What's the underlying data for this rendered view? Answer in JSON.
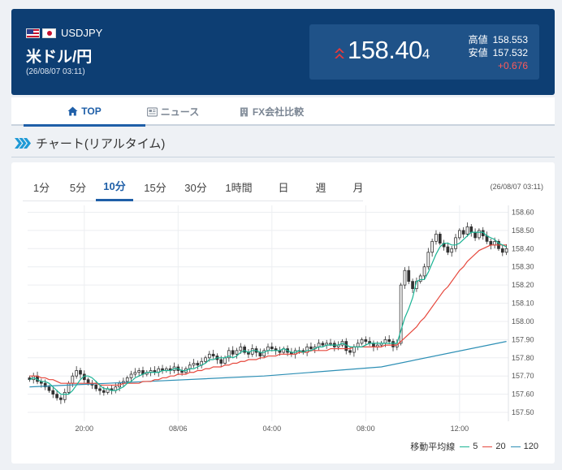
{
  "header": {
    "pair_code": "USDJPY",
    "pair_name": "米ドル/円",
    "timestamp": "(26/08/07 03:11)",
    "price_main": "158.40",
    "price_sub": "4",
    "high_label": "高値",
    "high_value": "158.553",
    "low_label": "安値",
    "low_value": "157.532",
    "change": "+0.676",
    "price_direction_icon": "double-chevron-up-icon",
    "colors": {
      "background": "#0d3e73",
      "price_box": "#1f5288",
      "up": "#e83a3a"
    }
  },
  "tabs": [
    {
      "label": "TOP",
      "icon": "home-icon",
      "active": true
    },
    {
      "label": "ニュース",
      "icon": "newspaper-icon",
      "active": false
    },
    {
      "label": "FX会社比較",
      "icon": "building-icon",
      "active": false
    }
  ],
  "section_title": "チャート(リアルタイム)",
  "chart": {
    "periods": [
      "1分",
      "5分",
      "10分",
      "15分",
      "30分",
      "1時間",
      "日",
      "週",
      "月"
    ],
    "active_period": "10分",
    "timestamp": "(26/08/07 03:11)",
    "legend_title": "移動平均線",
    "ma": [
      {
        "label": "5",
        "color": "#1ab394"
      },
      {
        "label": "20",
        "color": "#e6483d"
      },
      {
        "label": "120",
        "color": "#2d8fb5"
      }
    ]
  },
  "chart_data": {
    "type": "candlestick",
    "x_ticks": [
      "20:00",
      "08/06",
      "04:00",
      "08:00",
      "12:00"
    ],
    "y_ticks": [
      "158.60",
      "158.50",
      "158.40",
      "158.30",
      "158.20",
      "158.10",
      "158.00",
      "157.90",
      "157.80",
      "157.70",
      "157.60",
      "157.50"
    ],
    "ylim": [
      157.46,
      158.62
    ],
    "grid": true,
    "close_series": [
      157.68,
      157.7,
      157.67,
      157.66,
      157.64,
      157.62,
      157.6,
      157.58,
      157.57,
      157.61,
      157.66,
      157.7,
      157.73,
      157.71,
      157.68,
      157.66,
      157.65,
      157.63,
      157.62,
      157.61,
      157.63,
      157.62,
      157.64,
      157.66,
      157.67,
      157.69,
      157.71,
      157.72,
      157.73,
      157.71,
      157.72,
      157.73,
      157.72,
      157.74,
      157.73,
      157.74,
      157.73,
      157.75,
      157.73,
      157.72,
      157.74,
      157.76,
      157.77,
      157.76,
      157.78,
      157.8,
      157.82,
      157.81,
      157.79,
      157.77,
      157.8,
      157.84,
      157.82,
      157.84,
      157.86,
      157.83,
      157.82,
      157.85,
      157.83,
      157.81,
      157.84,
      157.86,
      157.85,
      157.84,
      157.83,
      157.85,
      157.83,
      157.82,
      157.84,
      157.84,
      157.83,
      157.86,
      157.85,
      157.86,
      157.88,
      157.87,
      157.88,
      157.88,
      157.86,
      157.87,
      157.89,
      157.84,
      157.83,
      157.86,
      157.88,
      157.9,
      157.89,
      157.88,
      157.86,
      157.87,
      157.88,
      157.9,
      157.89,
      157.86,
      157.88,
      158.2,
      158.28,
      158.22,
      158.18,
      158.22,
      158.25,
      158.3,
      158.38,
      158.44,
      158.48,
      158.43,
      158.41,
      158.38,
      158.4,
      158.46,
      158.5,
      158.48,
      158.52,
      158.49,
      158.46,
      158.5,
      158.47,
      158.44,
      158.42,
      158.44,
      158.4,
      158.38,
      158.4
    ],
    "ma5": [
      157.68,
      157.69,
      157.68,
      157.67,
      157.67,
      157.66,
      157.64,
      157.62,
      157.6,
      157.6,
      157.6,
      157.62,
      157.65,
      157.68,
      157.7,
      157.7,
      157.69,
      157.67,
      157.65,
      157.63,
      157.63,
      157.62,
      157.62,
      157.63,
      157.64,
      157.66,
      157.67,
      157.69,
      157.7,
      157.71,
      157.72,
      157.72,
      157.72,
      157.72,
      157.73,
      157.73,
      157.73,
      157.74,
      157.74,
      157.73,
      157.73,
      157.74,
      157.74,
      157.75,
      157.76,
      157.77,
      157.79,
      157.79,
      157.8,
      157.8,
      157.8,
      157.81,
      157.8,
      157.81,
      157.83,
      157.84,
      157.83,
      157.84,
      157.84,
      157.83,
      157.83,
      157.84,
      157.84,
      157.84,
      157.84,
      157.85,
      157.84,
      157.83,
      157.83,
      157.84,
      157.83,
      157.84,
      157.84,
      157.85,
      157.86,
      157.86,
      157.87,
      157.87,
      157.87,
      157.87,
      157.88,
      157.87,
      157.86,
      157.86,
      157.86,
      157.86,
      157.87,
      157.88,
      157.88,
      157.88,
      157.88,
      157.88,
      157.88,
      157.88,
      157.88,
      157.95,
      158.02,
      158.07,
      158.13,
      158.22,
      158.23,
      158.23,
      158.27,
      158.32,
      158.37,
      158.41,
      158.43,
      158.43,
      158.42,
      158.42,
      158.43,
      158.45,
      158.47,
      158.49,
      158.49,
      158.49,
      158.49,
      158.47,
      158.46,
      158.45,
      158.43,
      158.42,
      158.41
    ],
    "ma20": [
      157.7,
      157.7,
      157.7,
      157.69,
      157.69,
      157.68,
      157.68,
      157.67,
      157.66,
      157.66,
      157.66,
      157.66,
      157.66,
      157.66,
      157.66,
      157.66,
      157.66,
      157.66,
      157.65,
      157.65,
      157.65,
      157.65,
      157.65,
      157.65,
      157.66,
      157.66,
      157.66,
      157.66,
      157.66,
      157.67,
      157.67,
      157.67,
      157.68,
      157.68,
      157.69,
      157.69,
      157.7,
      157.7,
      157.71,
      157.71,
      157.71,
      157.72,
      157.72,
      157.73,
      157.73,
      157.74,
      157.74,
      157.75,
      157.75,
      157.75,
      157.76,
      157.76,
      157.77,
      157.77,
      157.78,
      157.78,
      157.79,
      157.79,
      157.79,
      157.8,
      157.8,
      157.81,
      157.81,
      157.81,
      157.82,
      157.82,
      157.82,
      157.82,
      157.82,
      157.83,
      157.83,
      157.83,
      157.84,
      157.84,
      157.84,
      157.84,
      157.84,
      157.85,
      157.85,
      157.85,
      157.85,
      157.85,
      157.85,
      157.86,
      157.86,
      157.86,
      157.86,
      157.86,
      157.86,
      157.86,
      157.86,
      157.87,
      157.87,
      157.87,
      157.87,
      157.89,
      157.91,
      157.93,
      157.95,
      157.97,
      158.0,
      158.02,
      158.05,
      158.08,
      158.11,
      158.14,
      158.17,
      158.19,
      158.22,
      158.25,
      158.28,
      158.3,
      158.33,
      158.35,
      158.37,
      158.39,
      158.4,
      158.41,
      158.42,
      158.42,
      158.42,
      158.42,
      158.42
    ],
    "ma120_x": [
      0,
      30,
      60,
      90,
      122
    ],
    "ma120": [
      157.64,
      157.67,
      157.7,
      157.75,
      157.89
    ]
  }
}
